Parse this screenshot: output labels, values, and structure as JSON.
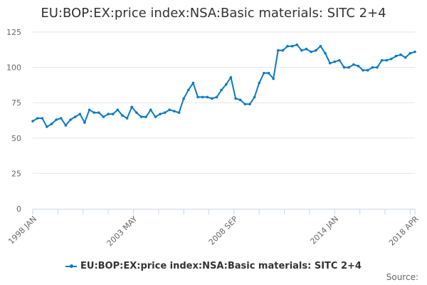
{
  "chart_data": {
    "type": "line",
    "title": "EU:BOP:EX:price index:NSA:Basic materials: SITC 2+4",
    "xlabel": "",
    "ylabel": "",
    "ylim": [
      0,
      125
    ],
    "yticks": [
      0,
      25,
      50,
      75,
      100,
      125
    ],
    "xtick_labels": [
      "1998 JAN",
      "2003 MAY",
      "2008 SEP",
      "2014 JAN",
      "2018 APR"
    ],
    "grid": "horizontal",
    "legend_placement": "bottom",
    "color": "#0b7ac2",
    "series": [
      {
        "name": "EU:BOP:EX:price index:NSA:Basic materials: SITC 2+4",
        "x": [
          "1998 JAN",
          "1998 APR",
          "1998 JUL",
          "1998 OCT",
          "1999 JAN",
          "1999 APR",
          "1999 JUL",
          "1999 OCT",
          "2000 JAN",
          "2000 APR",
          "2000 JUL",
          "2000 OCT",
          "2001 JAN",
          "2001 APR",
          "2001 JUL",
          "2001 OCT",
          "2002 JAN",
          "2002 APR",
          "2002 JUL",
          "2002 OCT",
          "2003 JAN",
          "2003 APR",
          "2003 JUL",
          "2003 OCT",
          "2004 JAN",
          "2004 APR",
          "2004 JUL",
          "2004 OCT",
          "2005 JAN",
          "2005 APR",
          "2005 JUL",
          "2005 OCT",
          "2006 JAN",
          "2006 APR",
          "2006 JUL",
          "2006 OCT",
          "2007 JAN",
          "2007 APR",
          "2007 JUL",
          "2007 OCT",
          "2008 JAN",
          "2008 APR",
          "2008 JUL",
          "2008 OCT",
          "2009 JAN",
          "2009 APR",
          "2009 JUL",
          "2009 OCT",
          "2010 JAN",
          "2010 APR",
          "2010 JUL",
          "2010 OCT",
          "2011 JAN",
          "2011 APR",
          "2011 JUL",
          "2011 OCT",
          "2012 JAN",
          "2012 APR",
          "2012 JUL",
          "2012 OCT",
          "2013 JAN",
          "2013 APR",
          "2013 JUL",
          "2013 OCT",
          "2014 JAN",
          "2014 APR",
          "2014 JUL",
          "2014 OCT",
          "2015 JAN",
          "2015 APR",
          "2015 JUL",
          "2015 OCT",
          "2016 JAN",
          "2016 APR",
          "2016 JUL",
          "2016 OCT",
          "2017 JAN",
          "2017 APR",
          "2017 JUL",
          "2017 OCT",
          "2018 JAN",
          "2018 APR"
        ],
        "values": [
          62,
          64,
          64,
          58,
          60,
          63,
          64,
          59,
          63,
          65,
          67,
          61,
          70,
          68,
          68,
          65,
          67,
          67,
          70,
          66,
          64,
          72,
          68,
          65,
          65,
          70,
          65,
          67,
          68,
          70,
          69,
          68,
          78,
          84,
          89,
          79,
          79,
          79,
          78,
          79,
          84,
          88,
          93,
          78,
          77,
          74,
          74,
          79,
          89,
          96,
          96,
          92,
          112,
          112,
          115,
          115,
          116,
          112,
          113,
          111,
          112,
          115,
          110,
          103,
          104,
          105,
          100,
          100,
          102,
          101,
          98,
          98,
          100,
          100,
          105,
          105,
          106,
          108,
          109,
          107,
          110,
          111
        ]
      }
    ]
  },
  "footer": {
    "source": "Source:"
  }
}
